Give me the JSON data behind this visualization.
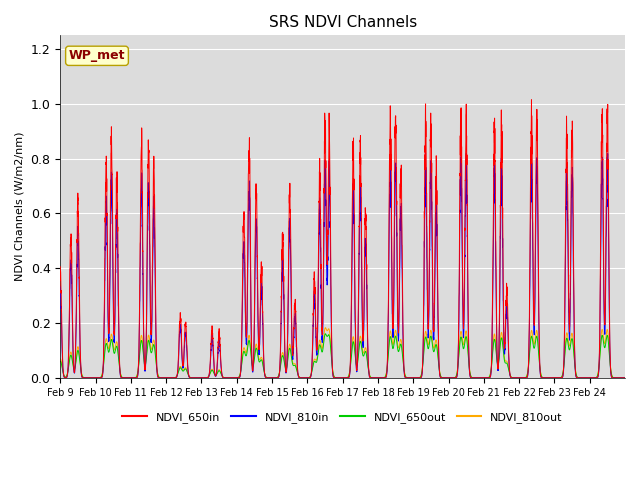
{
  "title": "SRS NDVI Channels",
  "ylabel": "NDVI Channels (W/m2/nm)",
  "annotation": "WP_met",
  "ylim": [
    0,
    1.25
  ],
  "bg_color": "#dcdcdc",
  "legend_labels": [
    "NDVI_650in",
    "NDVI_810in",
    "NDVI_650out",
    "NDVI_810out"
  ],
  "legend_colors": [
    "#ff0000",
    "#0000ff",
    "#00cc00",
    "#ffaa00"
  ],
  "line_colors": {
    "ch650in": "#ff0000",
    "ch810in": "#0000ff",
    "ch650out": "#00cc00",
    "ch810out": "#ffaa00"
  },
  "xtick_labels": [
    "Feb 9",
    "Feb 10",
    "Feb 11",
    "Feb 12",
    "Feb 13",
    "Feb 14",
    "Feb 15",
    "Feb 16",
    "Feb 17",
    "Feb 18",
    "Feb 19",
    "Feb 20",
    "Feb 21",
    "Feb 22",
    "Feb 23",
    "Feb 24"
  ],
  "ytick_labels": [
    "0.0",
    "0.2",
    "0.4",
    "0.6",
    "0.8",
    "1.0",
    "1.2"
  ],
  "figsize": [
    6.4,
    4.8
  ],
  "dpi": 100
}
